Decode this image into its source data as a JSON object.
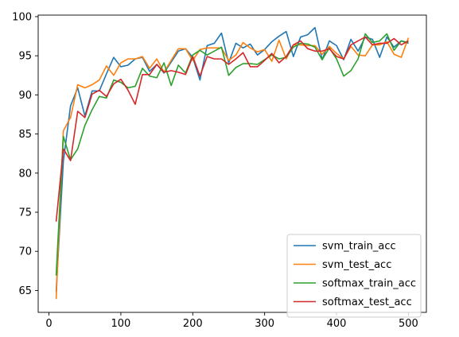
{
  "chart_data": {
    "type": "line",
    "title": "",
    "xlabel": "",
    "ylabel": "",
    "xlim": [
      -15,
      525
    ],
    "ylim": [
      62.2,
      100.2
    ],
    "xticks": [
      0,
      100,
      200,
      300,
      400,
      500
    ],
    "yticks": [
      65,
      70,
      75,
      80,
      85,
      90,
      95,
      100
    ],
    "grid": false,
    "legend_position": "lower-right",
    "x": [
      10,
      20,
      30,
      40,
      50,
      60,
      70,
      80,
      90,
      100,
      110,
      120,
      130,
      140,
      150,
      160,
      170,
      180,
      190,
      200,
      210,
      220,
      230,
      240,
      250,
      260,
      270,
      280,
      290,
      300,
      310,
      320,
      330,
      340,
      350,
      360,
      370,
      380,
      390,
      400,
      410,
      420,
      430,
      440,
      450,
      460,
      470,
      480,
      490,
      500
    ],
    "series": [
      {
        "name": "svm_train_acc",
        "color": "#1f77b4",
        "values": [
          64.8,
          81.5,
          88.6,
          90.9,
          87.3,
          90.5,
          90.5,
          92.7,
          94.8,
          93.6,
          93.8,
          94.6,
          94.8,
          93.0,
          93.9,
          92.8,
          94.2,
          95.6,
          95.9,
          94.8,
          91.9,
          96.3,
          96.6,
          97.9,
          94.1,
          96.6,
          96.0,
          96.5,
          95.1,
          95.8,
          96.8,
          97.5,
          98.1,
          94.9,
          97.4,
          97.7,
          98.6,
          94.5,
          96.9,
          96.3,
          94.5,
          97.1,
          95.6,
          97.4,
          97.1,
          94.8,
          97.4,
          96.1,
          96.9,
          96.6
        ]
      },
      {
        "name": "svm_test_acc",
        "color": "#ff7f0e",
        "values": [
          63.9,
          85.4,
          87.1,
          91.3,
          90.9,
          91.3,
          91.9,
          93.7,
          92.5,
          94.1,
          94.6,
          94.6,
          94.9,
          93.4,
          94.6,
          92.9,
          94.4,
          95.9,
          95.9,
          94.4,
          95.8,
          96.0,
          96.0,
          96.0,
          94.4,
          95.1,
          96.7,
          96.0,
          95.5,
          95.8,
          94.3,
          97.0,
          94.6,
          96.4,
          96.4,
          96.3,
          96.3,
          95.2,
          96.2,
          95.3,
          94.6,
          96.2,
          95.1,
          95.0,
          96.4,
          96.4,
          96.8,
          95.2,
          94.8,
          97.3
        ]
      },
      {
        "name": "softmax_train_acc",
        "color": "#2ca02c",
        "values": [
          66.9,
          84.7,
          81.7,
          83.1,
          86.1,
          88.1,
          89.8,
          89.6,
          91.9,
          91.6,
          90.9,
          91.1,
          93.4,
          92.4,
          92.2,
          94.1,
          91.2,
          93.8,
          92.8,
          95.1,
          95.7,
          95.1,
          95.6,
          96.1,
          92.5,
          93.5,
          94.0,
          94.0,
          93.9,
          94.5,
          95.1,
          94.6,
          94.8,
          96.1,
          96.6,
          96.5,
          96.1,
          94.5,
          96.0,
          94.6,
          92.4,
          93.1,
          94.6,
          97.8,
          96.7,
          96.9,
          97.8,
          95.7,
          96.9,
          96.7
        ]
      },
      {
        "name": "softmax_test_acc",
        "color": "#d62728",
        "values": [
          73.8,
          83.1,
          81.6,
          87.9,
          87.1,
          90.1,
          90.6,
          89.8,
          91.4,
          92.0,
          90.6,
          88.8,
          92.6,
          92.6,
          93.9,
          92.9,
          93.1,
          92.9,
          92.6,
          94.9,
          92.4,
          94.9,
          94.6,
          94.6,
          93.9,
          94.6,
          95.4,
          93.6,
          93.6,
          94.4,
          95.3,
          94.1,
          94.9,
          96.4,
          96.9,
          95.9,
          95.6,
          95.6,
          95.9,
          94.9,
          94.6,
          96.4,
          96.9,
          97.4,
          96.4,
          96.6,
          96.6,
          97.2,
          96.4,
          96.9
        ]
      }
    ]
  }
}
